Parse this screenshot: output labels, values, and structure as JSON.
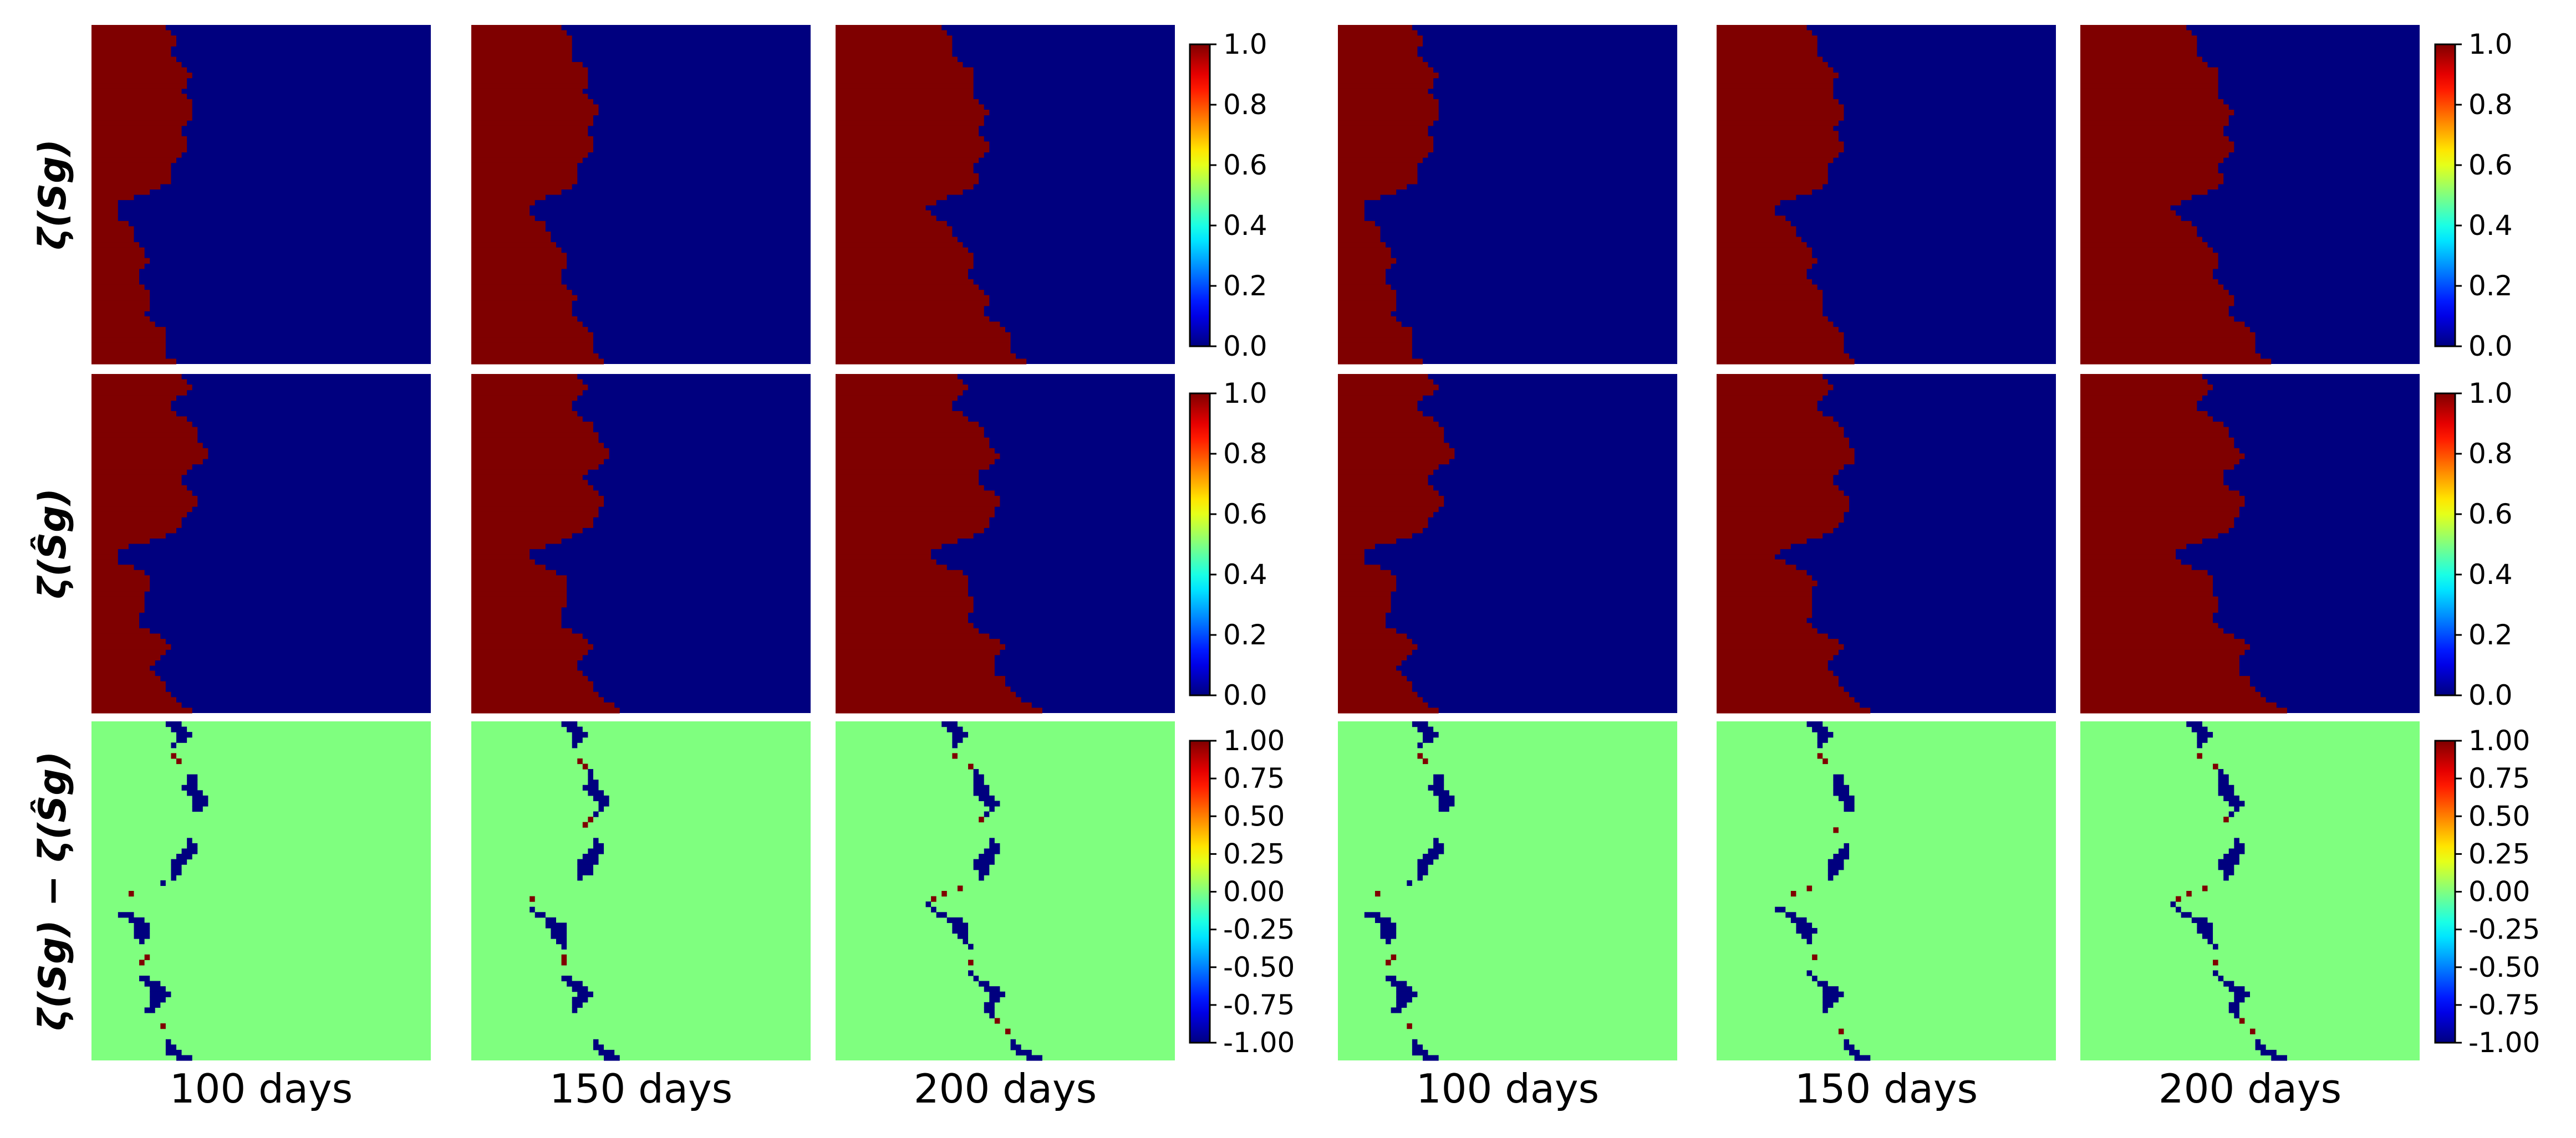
{
  "figure": {
    "row_labels": [
      "ζ(Sg)",
      "ζ(Ŝg)",
      "ζ(Sg) − ζ(Ŝg)"
    ],
    "column_labels": [
      "100 days",
      "150 days",
      "200 days",
      "100 days",
      "150 days",
      "200 days"
    ],
    "colormap": "jet",
    "colors": {
      "red_phase": "#7f0000",
      "blue_phase": "#00007f",
      "neutral": "#7fff7f"
    }
  },
  "chart_data": [
    {
      "type": "heatmap",
      "description_scope": "left panel group",
      "grid": [
        64,
        64
      ],
      "rows": [
        {
          "name": "ζ(Sg)",
          "colorbar": {
            "vmin": 0.0,
            "vmax": 1.0,
            "ticks": [
              "0.0",
              "0.2",
              "0.4",
              "0.6",
              "0.8",
              "1.0"
            ]
          }
        },
        {
          "name": "ζ(Ŝg)",
          "colorbar": {
            "vmin": 0.0,
            "vmax": 1.0,
            "ticks": [
              "0.0",
              "0.2",
              "0.4",
              "0.6",
              "0.8",
              "1.0"
            ]
          }
        },
        {
          "name": "ζ(Sg) − ζ(Ŝg)",
          "colorbar": {
            "vmin": -1.0,
            "vmax": 1.0,
            "ticks": [
              "-1.00",
              "-0.75",
              "-0.50",
              "-0.25",
              "0.00",
              "0.25",
              "0.50",
              "0.75",
              "1.00"
            ]
          }
        }
      ],
      "columns": [
        "100 days",
        "150 days",
        "200 days"
      ],
      "front_advance": [
        0.0,
        0.12,
        0.25
      ]
    },
    {
      "type": "heatmap",
      "description_scope": "right panel group",
      "grid": [
        64,
        64
      ],
      "rows": [
        {
          "name": "ζ(Sg)",
          "colorbar": {
            "vmin": 0.0,
            "vmax": 1.0,
            "ticks": [
              "0.0",
              "0.2",
              "0.4",
              "0.6",
              "0.8",
              "1.0"
            ]
          }
        },
        {
          "name": "ζ(Ŝg)",
          "colorbar": {
            "vmin": 0.0,
            "vmax": 1.0,
            "ticks": [
              "0.0",
              "0.2",
              "0.4",
              "0.6",
              "0.8",
              "1.0"
            ]
          }
        },
        {
          "name": "ζ(Sg) − ζ(Ŝg)",
          "colorbar": {
            "vmin": -1.0,
            "vmax": 1.0,
            "ticks": [
              "-1.00",
              "-0.75",
              "-0.50",
              "-0.25",
              "0.00",
              "0.25",
              "0.50",
              "0.75",
              "1.00"
            ]
          }
        }
      ],
      "columns": [
        "100 days",
        "150 days",
        "200 days"
      ],
      "front_advance": [
        0.0,
        0.13,
        0.25
      ]
    }
  ]
}
